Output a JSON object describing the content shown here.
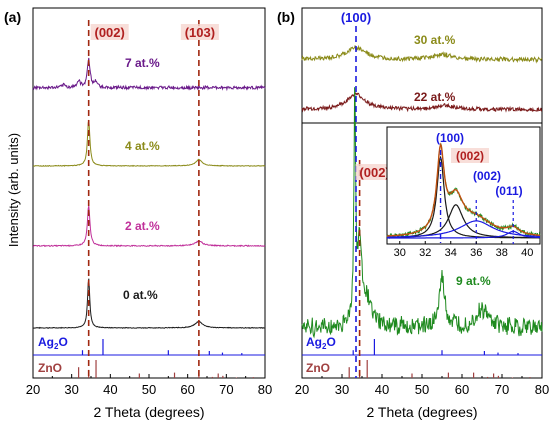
{
  "colors": {
    "black": "#1a1a1a",
    "magenta": "#c0309a",
    "olive": "#8b8b1a",
    "purple": "#6a1a8a",
    "darkred": "#7a1a1a",
    "green": "#1f8a1f",
    "blue": "#1a1ae0",
    "brown": "#a04040",
    "reflabel_red": "#c02020",
    "refline": "#b04020",
    "peak_label": "#b02020"
  },
  "chart_data": [
    {
      "type": "line",
      "panel_label": "(a)",
      "ylabel": "Intensity (arb. units)",
      "xlabel": "2 Theta (degrees)",
      "xlim": [
        20,
        80
      ],
      "xticks": [
        "20",
        "30",
        "40",
        "50",
        "60",
        "70",
        "80"
      ],
      "grid": false,
      "peak_labels": [
        "(002)",
        "(103)"
      ],
      "peak_positions": [
        34.4,
        62.9
      ],
      "series": [
        {
          "name": "0 at.%",
          "color": "#1a1a1a",
          "peaks": [
            {
              "x": 34.4,
              "height": 0.62,
              "width": 0.35
            },
            {
              "x": 62.9,
              "height": 0.08,
              "width": 1.2
            }
          ],
          "noise": 0.004
        },
        {
          "name": "2 at.%",
          "color": "#c0309a",
          "peaks": [
            {
              "x": 34.4,
              "height": 0.5,
              "width": 0.4
            },
            {
              "x": 62.9,
              "height": 0.06,
              "width": 1.2
            }
          ],
          "noise": 0.006
        },
        {
          "name": "4 at.%",
          "color": "#8b8b1a",
          "peaks": [
            {
              "x": 34.4,
              "height": 0.58,
              "width": 0.38
            },
            {
              "x": 62.9,
              "height": 0.08,
              "width": 1.0
            }
          ],
          "noise": 0.004
        },
        {
          "name": "7 at.%",
          "color": "#6a1a8a",
          "peaks": [
            {
              "x": 34.4,
              "height": 0.35,
              "width": 0.45
            },
            {
              "x": 31.8,
              "height": 0.08,
              "width": 0.5
            },
            {
              "x": 36.3,
              "height": 0.07,
              "width": 0.5
            },
            {
              "x": 28,
              "height": 0.03,
              "width": 0.6
            }
          ],
          "noise": 0.018
        }
      ],
      "reference_patterns": [
        {
          "name": "Ag2O",
          "label_main": "Ag",
          "label_sub": "2",
          "label_end": "O",
          "color": "#1a1ae0",
          "sticks": [
            {
              "x": 32.8,
              "h": 0.3
            },
            {
              "x": 38.1,
              "h": 1.0
            },
            {
              "x": 55.0,
              "h": 0.3
            },
            {
              "x": 65.6,
              "h": 0.25
            },
            {
              "x": 69.0,
              "h": 0.15
            },
            {
              "x": 74.0,
              "h": 0.12
            }
          ]
        },
        {
          "name": "ZnO",
          "label_main": "ZnO",
          "color": "#a04040",
          "sticks": [
            {
              "x": 31.8,
              "h": 0.6
            },
            {
              "x": 34.4,
              "h": 0.45
            },
            {
              "x": 36.3,
              "h": 1.0
            },
            {
              "x": 47.5,
              "h": 0.25
            },
            {
              "x": 56.6,
              "h": 0.3
            },
            {
              "x": 62.9,
              "h": 0.3
            },
            {
              "x": 66.4,
              "h": 0.06
            },
            {
              "x": 67.9,
              "h": 0.25
            },
            {
              "x": 69.1,
              "h": 0.12
            },
            {
              "x": 72.6,
              "h": 0.03
            },
            {
              "x": 77.0,
              "h": 0.05
            }
          ]
        }
      ]
    },
    {
      "type": "line",
      "panel_label": "(b)",
      "xlabel": "2 Theta (degrees)",
      "xlim": [
        20,
        80
      ],
      "xticks": [
        "20",
        "30",
        "40",
        "50",
        "60",
        "70",
        "80"
      ],
      "grid": false,
      "peak_labels": [
        "(100)",
        "(002)"
      ],
      "peak_positions": [
        33.5,
        34.4
      ],
      "series": [
        {
          "name": "30 at.%",
          "color": "#8b8b1a",
          "peaks": [
            {
              "x": 33.5,
              "height": 0.2,
              "width": 2.8
            },
            {
              "x": 55,
              "height": 0.08,
              "width": 3
            }
          ],
          "noise": 0.035
        },
        {
          "name": "22 at.%",
          "color": "#7a1a1a",
          "peaks": [
            {
              "x": 33.5,
              "height": 0.25,
              "width": 2.8
            },
            {
              "x": 56,
              "height": 0.06,
              "width": 3
            }
          ],
          "noise": 0.03
        },
        {
          "name": "9 at.%",
          "color": "#1f8a1f",
          "peaks": [
            {
              "x": 33.2,
              "height": 1.6,
              "width": 0.25
            },
            {
              "x": 34.4,
              "height": 0.55,
              "width": 0.6
            },
            {
              "x": 36.0,
              "height": 0.2,
              "width": 1.5
            },
            {
              "x": 55.0,
              "height": 0.35,
              "width": 0.8
            },
            {
              "x": 65.0,
              "height": 0.12,
              "width": 2
            }
          ],
          "noise": 0.06
        }
      ],
      "inset": {
        "xlim": [
          29,
          41
        ],
        "xticks": [
          "30",
          "32",
          "34",
          "36",
          "38",
          "40"
        ],
        "peak_labels": [
          "(100)",
          "(002)",
          "(002)",
          "(011)"
        ],
        "peak_positions": [
          33.2,
          34.4,
          36.0,
          38.9
        ]
      },
      "reference_patterns": [
        {
          "name": "Ag2O",
          "label_main": "Ag",
          "label_sub": "2",
          "label_end": "O",
          "color": "#1a1ae0",
          "sticks": [
            {
              "x": 32.8,
              "h": 0.3
            },
            {
              "x": 38.1,
              "h": 1.0
            },
            {
              "x": 55.0,
              "h": 0.3
            },
            {
              "x": 65.6,
              "h": 0.25
            },
            {
              "x": 69.0,
              "h": 0.15
            },
            {
              "x": 74.0,
              "h": 0.12
            }
          ]
        },
        {
          "name": "ZnO",
          "label_main": "ZnO",
          "color": "#a04040",
          "sticks": [
            {
              "x": 31.8,
              "h": 0.6
            },
            {
              "x": 34.4,
              "h": 0.45
            },
            {
              "x": 36.3,
              "h": 1.0
            },
            {
              "x": 47.5,
              "h": 0.25
            },
            {
              "x": 56.6,
              "h": 0.3
            },
            {
              "x": 62.9,
              "h": 0.3
            },
            {
              "x": 66.4,
              "h": 0.06
            },
            {
              "x": 67.9,
              "h": 0.25
            },
            {
              "x": 69.1,
              "h": 0.12
            },
            {
              "x": 72.6,
              "h": 0.03
            },
            {
              "x": 77.0,
              "h": 0.05
            }
          ]
        }
      ]
    }
  ]
}
